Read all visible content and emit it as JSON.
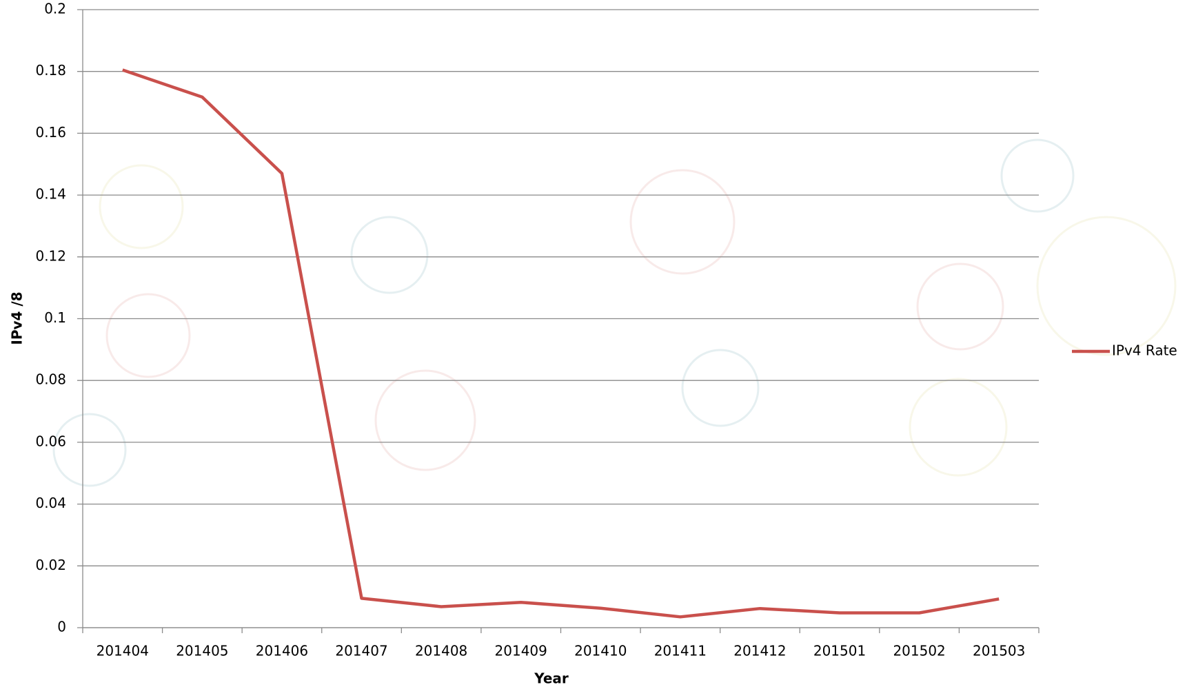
{
  "chart_data": {
    "type": "line",
    "categories": [
      "201404",
      "201405",
      "201406",
      "201407",
      "201408",
      "201409",
      "201410",
      "201411",
      "201412",
      "201501",
      "201502",
      "201503"
    ],
    "series": [
      {
        "name": "IPv4 Rate",
        "color": "#c9504c",
        "values": [
          0.1805,
          0.1717,
          0.147,
          0.0095,
          0.0068,
          0.0082,
          0.0063,
          0.0035,
          0.0062,
          0.0048,
          0.0048,
          0.0093
        ]
      }
    ],
    "x_label": "Year",
    "y_label": "IPv4 /8",
    "ylim": [
      0,
      0.2
    ],
    "yticks": [
      0,
      0.02,
      0.04,
      0.06,
      0.08,
      0.1,
      0.12,
      0.14,
      0.16,
      0.18,
      0.2
    ],
    "grid": true,
    "legend": "right"
  }
}
